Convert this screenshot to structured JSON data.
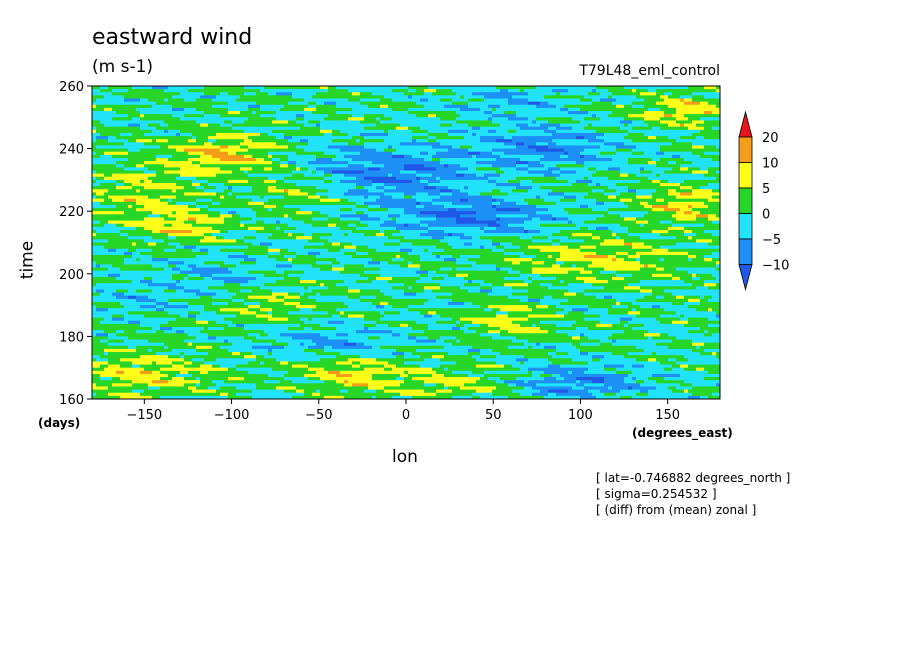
{
  "chart_data": {
    "type": "heatmap",
    "title": "eastward wind",
    "units": "(m s-1)",
    "run_label": "T79L48_eml_control",
    "xlabel": "lon",
    "xunit": "(degrees_east)",
    "ylabel": "time",
    "yunit": "(days)",
    "xlim": [
      -180,
      180
    ],
    "ylim": [
      160,
      260
    ],
    "xticks": [
      -150,
      -100,
      -50,
      0,
      50,
      100,
      150
    ],
    "yticks": [
      160,
      180,
      200,
      220,
      240,
      260
    ],
    "colorbar": {
      "levels": [
        "20",
        "10",
        "5",
        "0",
        "-5",
        "-10"
      ],
      "colors": [
        "#e8141c",
        "#f59d18",
        "#ffff1a",
        "#27d627",
        "#21e3fb",
        "#1d90f5",
        "#1f58e6"
      ],
      "extend": "both"
    },
    "notes": [
      "[ lat=-0.746882 degrees_north ]",
      "[ sigma=0.254532 ]",
      "[ (diff) from (mean) zonal ]"
    ]
  }
}
